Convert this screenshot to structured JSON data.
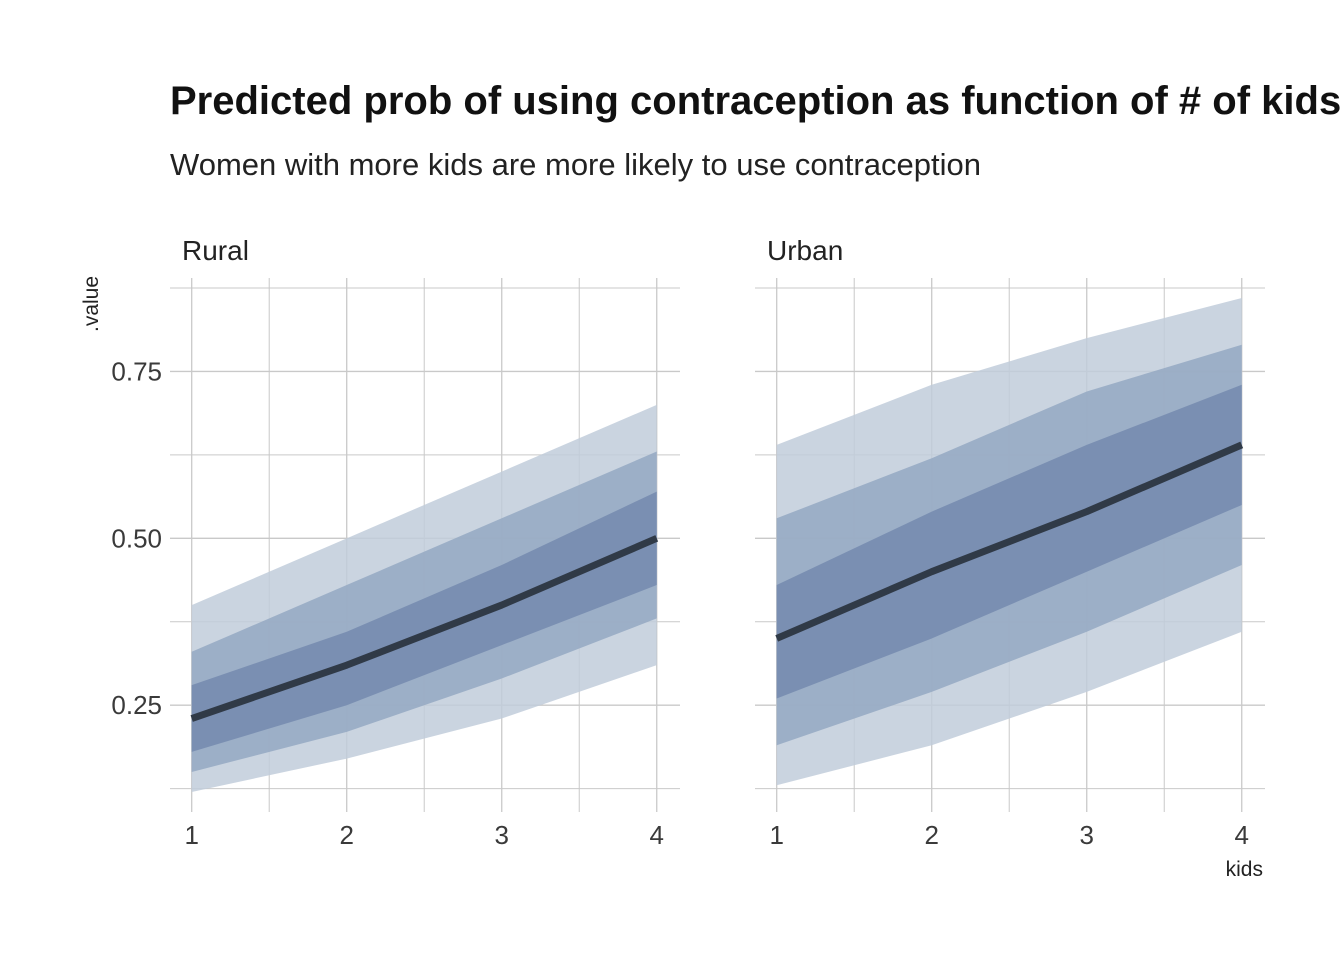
{
  "chart_data": {
    "type": "area",
    "title": "Predicted prob of using contraception as function of # of kids",
    "subtitle": "Women with more kids are more likely to use contraception",
    "xlabel": "kids",
    "ylabel": ".value",
    "x": [
      1,
      2,
      3,
      4
    ],
    "xlim": [
      0.86,
      4.15
    ],
    "ylim": [
      0.09,
      0.89
    ],
    "x_ticks": [
      1,
      2,
      3,
      4
    ],
    "x_tick_labels": [
      "1",
      "2",
      "3",
      "4"
    ],
    "y_ticks": [
      0.25,
      0.5,
      0.75
    ],
    "y_tick_labels": [
      "0.25",
      "0.50",
      "0.75"
    ],
    "grid": true,
    "legend": "none",
    "colors": {
      "band_light": "#c1cddb",
      "band_mid": "#94a8c2",
      "band_dark": "#7489ae",
      "line": "#303a47",
      "grid": "#c9c9c9",
      "text": "#222222"
    },
    "facets": [
      {
        "label": "Rural",
        "median": [
          0.23,
          0.31,
          0.4,
          0.5
        ],
        "bands": [
          {
            "level": "outer",
            "lower": [
              0.12,
              0.17,
              0.23,
              0.31
            ],
            "upper": [
              0.4,
              0.5,
              0.6,
              0.7
            ]
          },
          {
            "level": "middle",
            "lower": [
              0.15,
              0.21,
              0.29,
              0.38
            ],
            "upper": [
              0.33,
              0.43,
              0.53,
              0.63
            ]
          },
          {
            "level": "inner",
            "lower": [
              0.18,
              0.25,
              0.34,
              0.43
            ],
            "upper": [
              0.28,
              0.36,
              0.46,
              0.57
            ]
          }
        ]
      },
      {
        "label": "Urban",
        "median": [
          0.35,
          0.45,
          0.54,
          0.64
        ],
        "bands": [
          {
            "level": "outer",
            "lower": [
              0.13,
              0.19,
              0.27,
              0.36
            ],
            "upper": [
              0.64,
              0.73,
              0.8,
              0.86
            ]
          },
          {
            "level": "middle",
            "lower": [
              0.19,
              0.27,
              0.36,
              0.46
            ],
            "upper": [
              0.53,
              0.62,
              0.72,
              0.79
            ]
          },
          {
            "level": "inner",
            "lower": [
              0.26,
              0.35,
              0.45,
              0.55
            ],
            "upper": [
              0.43,
              0.54,
              0.64,
              0.73
            ]
          }
        ]
      }
    ]
  }
}
